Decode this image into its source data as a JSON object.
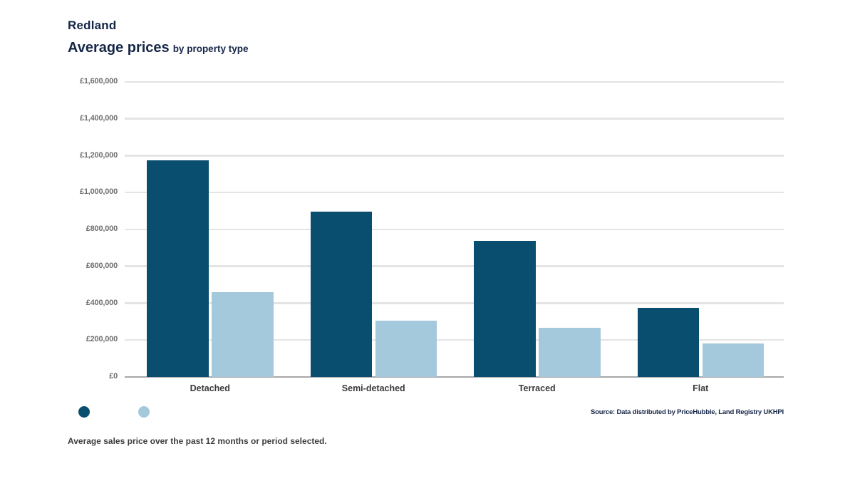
{
  "header": {
    "title": "Redland",
    "subtitle_main": "Average prices",
    "subtitle_suffix": "by property type"
  },
  "chart_data": {
    "type": "bar",
    "title": "Redland — Average prices by property type",
    "categories": [
      "Detached",
      "Semi-detached",
      "Terraced",
      "Flat"
    ],
    "series": [
      {
        "name": "dark-series",
        "color": "#094e6e",
        "values": [
          1175000,
          895000,
          740000,
          375000
        ]
      },
      {
        "name": "light-series",
        "color": "#a4c9dc",
        "values": [
          460000,
          305000,
          265000,
          180000
        ]
      }
    ],
    "xlabel": "",
    "ylabel": "",
    "ylim": [
      0,
      1600000
    ],
    "ytick_step": 200000,
    "ytick_labels_bottom_up": [
      "£0",
      "£200,000",
      "£400,000",
      "£600,000",
      "£800,000",
      "£1,000,000",
      "£1,200,000",
      "£1,400,000",
      "£1,600,000"
    ],
    "grid": true,
    "legend_position": "bottom-left"
  },
  "legend": {
    "dots": [
      {
        "name": "dark-series-dot",
        "color": "#094e6e"
      },
      {
        "name": "light-series-dot",
        "color": "#a4c9dc"
      }
    ]
  },
  "colors": {
    "title_navy": "#152647",
    "gridline": "#e4e4e4",
    "baseline": "#a8a8a8",
    "axis_label_gray": "#6f6f6f"
  },
  "source": "Source: Data distributed by PriceHubble, Land Registry UKHPI",
  "footnote": "Average sales price over the past 12 months or period selected."
}
